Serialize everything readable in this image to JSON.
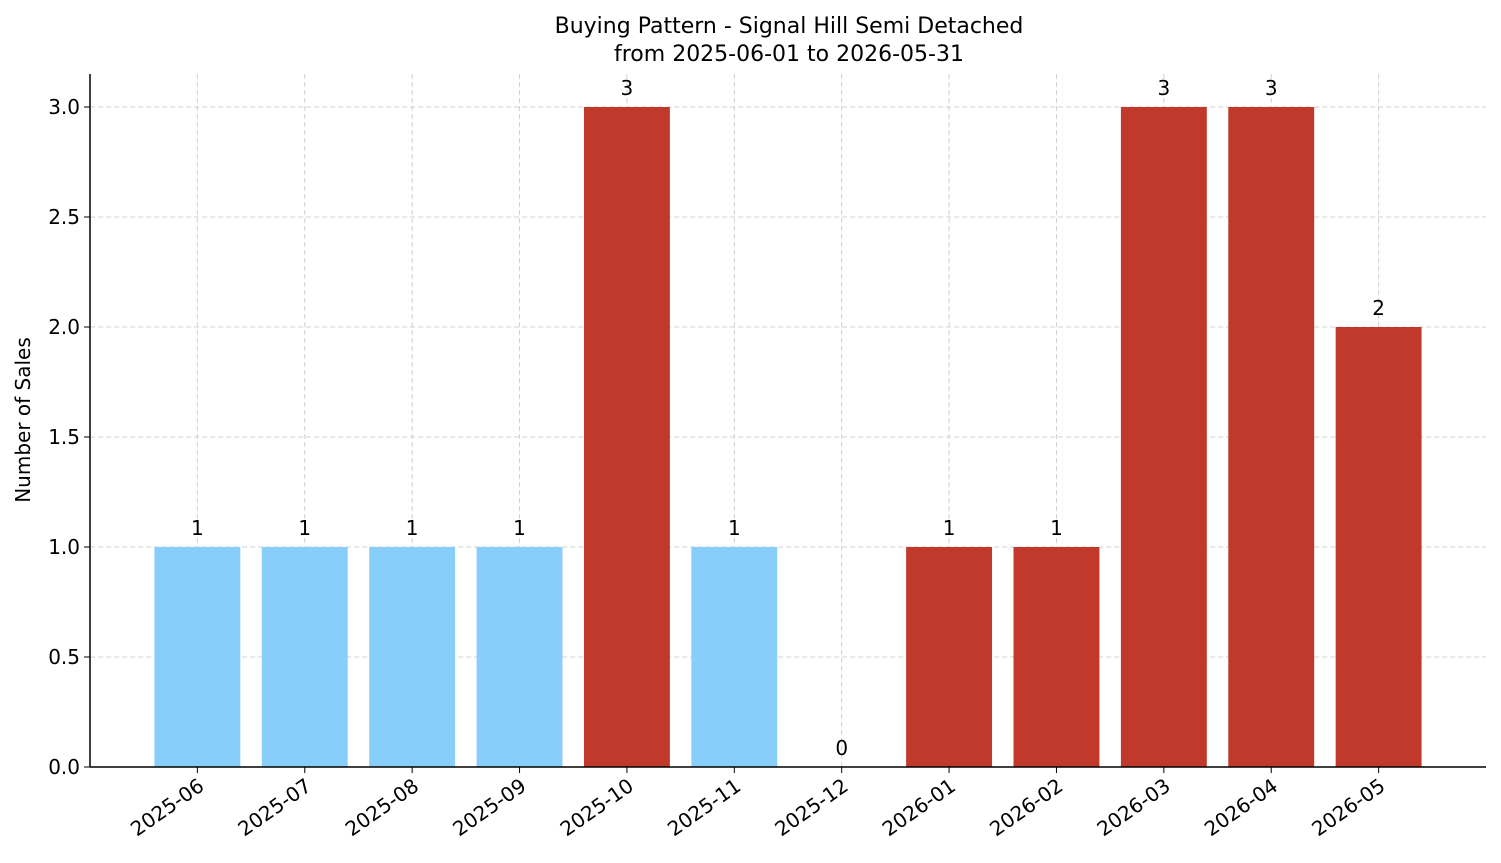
{
  "chart_data": {
    "type": "bar",
    "title": "Buying Pattern - Signal Hill Semi Detached",
    "subtitle": "from 2025-06-01 to 2026-05-31",
    "y_label": "Number of Sales",
    "categories": [
      "2025-06",
      "2025-07",
      "2025-08",
      "2025-09",
      "2025-10",
      "2025-11",
      "2025-12",
      "2026-01",
      "2026-02",
      "2026-03",
      "2026-04",
      "2026-05"
    ],
    "values": [
      1,
      1,
      1,
      1,
      3,
      1,
      0,
      1,
      1,
      3,
      3,
      2
    ],
    "colors": [
      "#87cefa",
      "#87cefa",
      "#87cefa",
      "#87cefa",
      "#c0392b",
      "#87cefa",
      "#87cefa",
      "#c0392b",
      "#c0392b",
      "#c0392b",
      "#c0392b",
      "#c0392b"
    ],
    "ylim": [
      0,
      3.15
    ],
    "yticks": [
      {
        "value": 0,
        "label": "0.0"
      },
      {
        "value": 0.5,
        "label": "0.5"
      },
      {
        "value": 1,
        "label": "1.0"
      },
      {
        "value": 1.5,
        "label": "1.5"
      },
      {
        "value": 2,
        "label": "2.0"
      },
      {
        "value": 2.5,
        "label": "2.5"
      },
      {
        "value": 3,
        "label": "3.0"
      }
    ],
    "grid": true
  }
}
